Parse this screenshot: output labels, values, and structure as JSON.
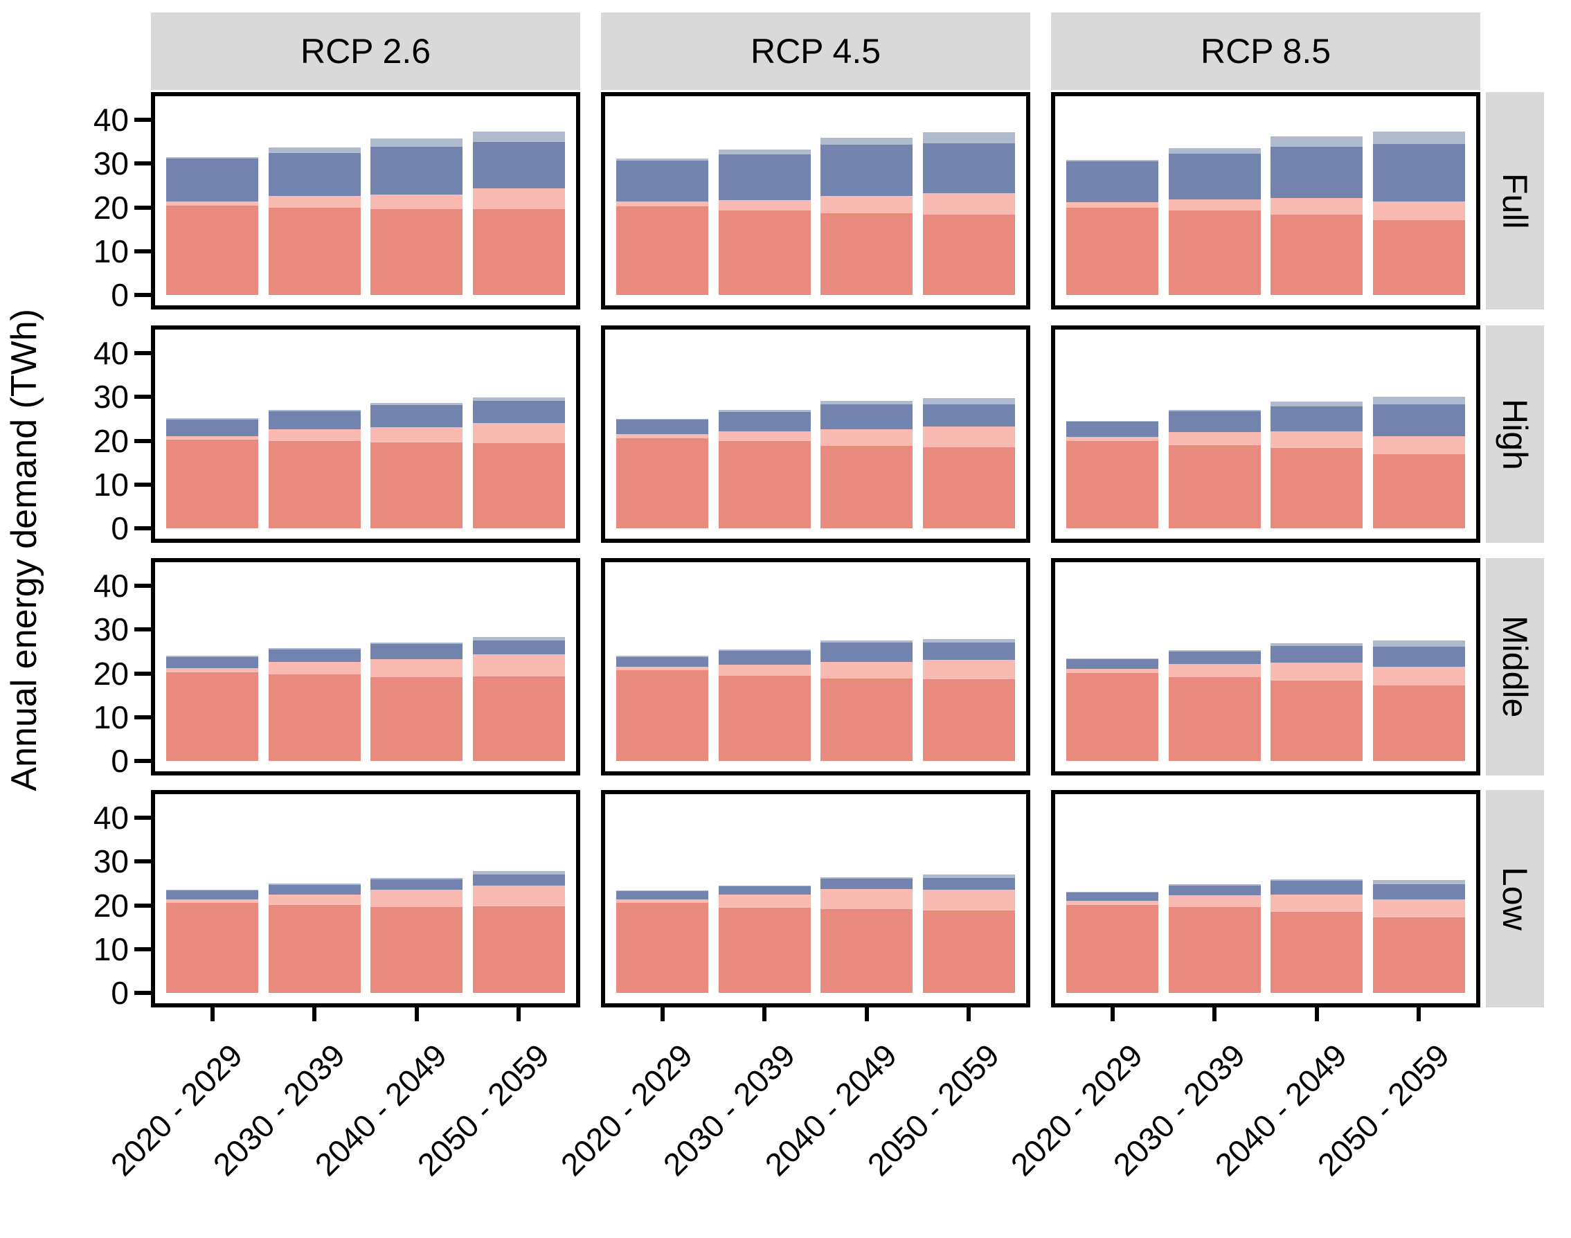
{
  "chart_data": {
    "type": "bar",
    "stacked": true,
    "title": "",
    "ylabel": "Annual energy demand (TWh)",
    "xlabel": "",
    "col_facets": [
      "RCP 2.6",
      "RCP 4.5",
      "RCP 8.5"
    ],
    "row_facets": [
      "Full",
      "High",
      "Middle",
      "Low"
    ],
    "categories": [
      "2020 - 2029",
      "2030 - 2039",
      "2040 - 2049",
      "2050 - 2059"
    ],
    "yticks": [
      0,
      10,
      20,
      30,
      40
    ],
    "ylim": [
      0,
      46
    ],
    "grid": false,
    "legend_position": "none",
    "segments": [
      {
        "name": "dark-salmon",
        "color": "#E98A7E"
      },
      {
        "name": "light-salmon",
        "color": "#F9BAB1"
      },
      {
        "name": "dark-blue",
        "color": "#7284AE"
      },
      {
        "name": "light-blue",
        "color": "#AFBACF"
      }
    ],
    "cells": [
      {
        "row": "Full",
        "col": "RCP 2.6",
        "stacks": [
          [
            20.4,
            0.9,
            9.9,
            0.3
          ],
          [
            19.9,
            2.7,
            9.9,
            1.2
          ],
          [
            19.6,
            3.4,
            10.8,
            1.9
          ],
          [
            19.7,
            4.6,
            10.7,
            2.4
          ]
        ]
      },
      {
        "row": "Full",
        "col": "RCP 4.5",
        "stacks": [
          [
            20.3,
            1.1,
            9.3,
            0.4
          ],
          [
            19.3,
            2.4,
            10.4,
            1.2
          ],
          [
            18.7,
            4.0,
            11.6,
            1.7
          ],
          [
            18.4,
            4.8,
            11.4,
            2.6
          ]
        ]
      },
      {
        "row": "Full",
        "col": "RCP 8.5",
        "stacks": [
          [
            20.0,
            1.2,
            9.4,
            0.3
          ],
          [
            19.3,
            2.6,
            10.4,
            1.2
          ],
          [
            18.4,
            3.7,
            11.7,
            2.4
          ],
          [
            17.1,
            4.3,
            13.1,
            2.9
          ]
        ]
      },
      {
        "row": "High",
        "col": "RCP 2.6",
        "stacks": [
          [
            20.2,
            0.8,
            3.9,
            0.2
          ],
          [
            19.9,
            2.7,
            4.2,
            0.3
          ],
          [
            19.7,
            3.4,
            5.1,
            0.5
          ],
          [
            19.4,
            4.7,
            5.0,
            0.8
          ]
        ]
      },
      {
        "row": "High",
        "col": "RCP 4.5",
        "stacks": [
          [
            20.5,
            1.0,
            3.3,
            0.2
          ],
          [
            19.9,
            2.2,
            4.5,
            0.4
          ],
          [
            18.9,
            3.7,
            5.7,
            0.8
          ],
          [
            18.5,
            4.7,
            5.1,
            1.5
          ]
        ]
      },
      {
        "row": "High",
        "col": "RCP 8.5",
        "stacks": [
          [
            20.0,
            0.9,
            3.5,
            0.2
          ],
          [
            19.0,
            3.0,
            4.7,
            0.3
          ],
          [
            18.4,
            3.7,
            5.7,
            1.2
          ],
          [
            16.9,
            4.1,
            7.3,
            1.7
          ]
        ]
      },
      {
        "row": "Middle",
        "col": "RCP 2.6",
        "stacks": [
          [
            20.3,
            0.9,
            2.6,
            0.2
          ],
          [
            19.8,
            2.8,
            2.9,
            0.3
          ],
          [
            19.2,
            4.1,
            3.4,
            0.4
          ],
          [
            19.3,
            5.0,
            3.3,
            0.8
          ]
        ]
      },
      {
        "row": "Middle",
        "col": "RCP 4.5",
        "stacks": [
          [
            20.7,
            0.8,
            2.3,
            0.2
          ],
          [
            19.5,
            2.5,
            3.1,
            0.3
          ],
          [
            18.9,
            3.8,
            4.4,
            0.4
          ],
          [
            18.6,
            4.5,
            4.0,
            0.7
          ]
        ]
      },
      {
        "row": "Middle",
        "col": "RCP 8.5",
        "stacks": [
          [
            20.1,
            0.9,
            2.3,
            0.2
          ],
          [
            19.1,
            3.1,
            2.8,
            0.3
          ],
          [
            18.4,
            4.0,
            3.9,
            0.6
          ],
          [
            17.2,
            4.3,
            4.6,
            1.4
          ]
        ]
      },
      {
        "row": "Low",
        "col": "RCP 2.6",
        "stacks": [
          [
            20.5,
            0.8,
            2.1,
            0.2
          ],
          [
            20.1,
            2.3,
            2.3,
            0.3
          ],
          [
            19.6,
            4.0,
            2.3,
            0.3
          ],
          [
            19.8,
            4.8,
            2.4,
            0.9
          ]
        ]
      },
      {
        "row": "Low",
        "col": "RCP 4.5",
        "stacks": [
          [
            20.6,
            0.8,
            2.0,
            0.1
          ],
          [
            19.4,
            3.0,
            1.9,
            0.2
          ],
          [
            19.2,
            4.5,
            2.4,
            0.3
          ],
          [
            18.9,
            4.7,
            2.7,
            0.7
          ]
        ]
      },
      {
        "row": "Low",
        "col": "RCP 8.5",
        "stacks": [
          [
            20.1,
            0.9,
            1.9,
            0.2
          ],
          [
            19.6,
            2.7,
            2.3,
            0.2
          ],
          [
            18.5,
            3.9,
            3.3,
            0.3
          ],
          [
            17.2,
            4.2,
            3.4,
            1.0
          ]
        ]
      }
    ]
  },
  "colors": {
    "strip_background": "#D9D9D9",
    "panel_border": "#000000",
    "text": "#000000",
    "background": "#FFFFFF"
  }
}
